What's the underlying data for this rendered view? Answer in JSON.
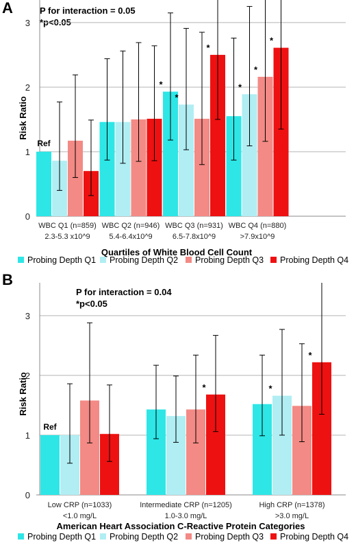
{
  "colors": {
    "q1": "#2ee6e6",
    "q2": "#b0eef3",
    "q3": "#f38a85",
    "q4": "#ee1111",
    "grid": "#b3b3b3",
    "axis": "#888888"
  },
  "chart_data": [
    {
      "type": "bar",
      "panel_label": "A",
      "annotation_line1": "P for interaction = 0.05",
      "annotation_line2": "*p<0.05",
      "ylabel": "Risk Ratio",
      "xlabel": "Quartiles of White Blood Cell Count",
      "ylim": [
        0,
        3.35
      ],
      "yticks": [
        "0",
        "1",
        "2",
        "3"
      ],
      "grid": true,
      "legend_position": "bottom",
      "categories": [
        {
          "line1": "WBC Q1 (n=859)",
          "line2": "2.3-5.3 x10^9"
        },
        {
          "line1": "WBC Q2 (n=946)",
          "line2": "5.4-6.4x10^9"
        },
        {
          "line1": "WBC Q3 (n=931)",
          "line2": "6.5-7.8x10^9"
        },
        {
          "line1": "WBC Q4 (n=880)",
          "line2": ">7.9x10^9"
        }
      ],
      "series": [
        {
          "name": "Probing Depth Q1",
          "values": [
            1.0,
            1.46,
            1.93,
            1.55
          ],
          "lower": [
            1.0,
            0.87,
            1.18,
            0.87
          ],
          "upper": [
            1.0,
            2.44,
            3.15,
            2.76
          ],
          "stars": [
            false,
            false,
            true,
            false
          ]
        },
        {
          "name": "Probing Depth Q2",
          "values": [
            0.86,
            1.46,
            1.73,
            1.89
          ],
          "lower": [
            0.4,
            0.82,
            1.03,
            1.09
          ],
          "upper": [
            1.77,
            2.56,
            2.91,
            3.25
          ],
          "stars": [
            false,
            false,
            true,
            true
          ]
        },
        {
          "name": "Probing Depth Q3",
          "values": [
            1.17,
            1.5,
            1.51,
            2.16
          ],
          "lower": [
            0.6,
            0.85,
            0.8,
            1.16
          ],
          "upper": [
            2.19,
            2.69,
            2.85,
            3.5
          ],
          "stars": [
            false,
            false,
            false,
            true
          ]
        },
        {
          "name": "Probing Depth Q4",
          "values": [
            0.7,
            1.51,
            2.5,
            2.61
          ],
          "lower": [
            0.32,
            0.86,
            1.5,
            1.35
          ],
          "upper": [
            1.49,
            2.64,
            3.5,
            3.5
          ],
          "stars": [
            false,
            false,
            true,
            true
          ]
        }
      ],
      "ref_label": "Ref"
    },
    {
      "type": "bar",
      "panel_label": "B",
      "annotation_line1": "P for interaction = 0.04",
      "annotation_line2": "*p<0.05",
      "ylabel": "Risk Ratio",
      "xlabel": "American Heart Association C-Reactive Protein Categories",
      "ylim": [
        0,
        3.55
      ],
      "yticks": [
        "0",
        "1",
        "2",
        "3"
      ],
      "grid": true,
      "legend_position": "bottom",
      "categories": [
        {
          "line1": "Low CRP (n=1033)",
          "line2": "<1.0 mg/L"
        },
        {
          "line1": "Intermediate CRP (n=1205)",
          "line2": "1.0-3.0 mg/L"
        },
        {
          "line1": "High CRP (n=1378)",
          "line2": ">3.0 mg/L"
        }
      ],
      "series": [
        {
          "name": "Probing Depth Q1",
          "values": [
            1.0,
            1.43,
            1.52
          ],
          "lower": [
            1.0,
            0.94,
            0.99
          ],
          "upper": [
            1.0,
            2.17,
            2.34
          ],
          "stars": [
            false,
            false,
            false
          ]
        },
        {
          "name": "Probing Depth Q2",
          "values": [
            1.0,
            1.32,
            1.66
          ],
          "lower": [
            0.53,
            0.88,
            1.0
          ],
          "upper": [
            1.86,
            1.99,
            2.77
          ],
          "stars": [
            false,
            false,
            true
          ]
        },
        {
          "name": "Probing Depth Q3",
          "values": [
            1.58,
            1.43,
            1.49
          ],
          "lower": [
            0.87,
            0.87,
            0.89
          ],
          "upper": [
            2.88,
            2.34,
            2.53
          ],
          "stars": [
            false,
            false,
            false
          ]
        },
        {
          "name": "Probing Depth Q4",
          "values": [
            1.02,
            1.68,
            2.22
          ],
          "lower": [
            0.56,
            1.06,
            1.35
          ],
          "upper": [
            1.84,
            2.67,
            3.6
          ],
          "stars": [
            false,
            true,
            true
          ]
        }
      ],
      "ref_label": "Ref"
    }
  ]
}
